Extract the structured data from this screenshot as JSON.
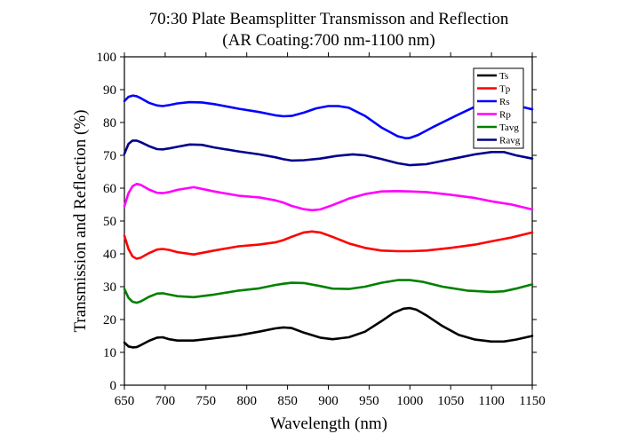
{
  "chart_data": {
    "type": "line",
    "title": "70:30 Plate Beamsplitter Transmisson and Reflection",
    "subtitle": "(AR Coating:700 nm-1100 nm)",
    "xlabel": "Wavelength (nm)",
    "ylabel": "Transmission and Reflection (%)",
    "xlim": [
      650,
      1150
    ],
    "ylim": [
      0,
      100
    ],
    "x_ticks": [
      650,
      700,
      750,
      800,
      850,
      900,
      950,
      1000,
      1050,
      1100,
      1150
    ],
    "y_ticks": [
      0,
      10,
      20,
      30,
      40,
      50,
      60,
      70,
      80,
      90,
      100
    ],
    "grid": false,
    "legend_position": "top-right",
    "series": [
      {
        "name": "Ts",
        "color": "#000000",
        "x": [
          650,
          655,
          660,
          665,
          670,
          680,
          690,
          697,
          705,
          715,
          735,
          760,
          790,
          815,
          835,
          845,
          855,
          870,
          890,
          905,
          925,
          945,
          965,
          980,
          992,
          1000,
          1008,
          1020,
          1040,
          1060,
          1080,
          1100,
          1115,
          1130,
          1150
        ],
        "values": [
          13.0,
          11.8,
          11.5,
          11.6,
          12.2,
          13.5,
          14.5,
          14.6,
          14.0,
          13.6,
          13.6,
          14.3,
          15.2,
          16.3,
          17.3,
          17.6,
          17.4,
          16.0,
          14.5,
          14.0,
          14.6,
          16.3,
          19.5,
          22.0,
          23.3,
          23.5,
          23.0,
          21.3,
          18.0,
          15.3,
          13.9,
          13.3,
          13.3,
          13.9,
          15.0
        ]
      },
      {
        "name": "Tp",
        "color": "#ff0000",
        "x": [
          650,
          655,
          660,
          665,
          670,
          680,
          690,
          697,
          705,
          715,
          735,
          760,
          790,
          815,
          835,
          845,
          855,
          870,
          880,
          890,
          905,
          925,
          945,
          965,
          985,
          1000,
          1020,
          1050,
          1080,
          1100,
          1125,
          1150
        ],
        "values": [
          45.5,
          41.5,
          39.2,
          38.5,
          38.8,
          40.2,
          41.3,
          41.5,
          41.2,
          40.5,
          39.8,
          41.0,
          42.3,
          42.8,
          43.5,
          44.2,
          45.2,
          46.5,
          46.8,
          46.5,
          45.2,
          43.2,
          41.8,
          41.0,
          40.8,
          40.8,
          41.0,
          41.8,
          42.8,
          43.8,
          45.0,
          46.5
        ]
      },
      {
        "name": "Rs",
        "color": "#0000ff",
        "x": [
          650,
          655,
          660,
          665,
          670,
          680,
          690,
          697,
          705,
          715,
          730,
          745,
          760,
          790,
          815,
          835,
          845,
          855,
          870,
          885,
          900,
          912,
          925,
          945,
          965,
          985,
          995,
          1000,
          1010,
          1030,
          1060,
          1080,
          1100,
          1115,
          1130,
          1140,
          1150
        ],
        "values": [
          86.5,
          87.8,
          88.2,
          88.0,
          87.4,
          86.0,
          85.2,
          85.0,
          85.3,
          85.8,
          86.2,
          86.1,
          85.6,
          84.2,
          83.2,
          82.2,
          81.9,
          82.0,
          83.0,
          84.3,
          85.0,
          85.0,
          84.5,
          82.0,
          78.5,
          75.8,
          75.2,
          75.3,
          76.2,
          78.8,
          82.5,
          84.8,
          86.0,
          86.1,
          85.2,
          84.6,
          84.0
        ]
      },
      {
        "name": "Rp",
        "color": "#ff00ff",
        "x": [
          650,
          655,
          660,
          665,
          670,
          680,
          690,
          697,
          705,
          715,
          735,
          760,
          790,
          815,
          835,
          845,
          855,
          870,
          880,
          890,
          905,
          925,
          945,
          965,
          985,
          1000,
          1020,
          1050,
          1080,
          1100,
          1125,
          1150
        ],
        "values": [
          54.5,
          58.5,
          60.6,
          61.3,
          61.0,
          59.6,
          58.6,
          58.5,
          58.8,
          59.5,
          60.3,
          59.0,
          57.7,
          57.2,
          56.3,
          55.6,
          54.6,
          53.6,
          53.3,
          53.5,
          54.8,
          56.8,
          58.2,
          59.0,
          59.1,
          59.0,
          58.8,
          58.0,
          57.0,
          56.0,
          55.0,
          53.5
        ]
      },
      {
        "name": "Tavg",
        "color": "#008000",
        "x": [
          650,
          655,
          660,
          665,
          670,
          680,
          690,
          697,
          705,
          715,
          735,
          760,
          790,
          815,
          835,
          845,
          855,
          870,
          890,
          905,
          925,
          945,
          965,
          985,
          1000,
          1015,
          1040,
          1070,
          1100,
          1115,
          1130,
          1150
        ],
        "values": [
          29.3,
          26.6,
          25.4,
          25.1,
          25.5,
          26.9,
          27.9,
          28.0,
          27.6,
          27.1,
          26.8,
          27.6,
          28.8,
          29.5,
          30.5,
          30.9,
          31.2,
          31.1,
          30.2,
          29.4,
          29.3,
          30.0,
          31.2,
          32.0,
          32.0,
          31.5,
          30.0,
          28.8,
          28.4,
          28.6,
          29.4,
          30.7
        ]
      },
      {
        "name": "Ravg",
        "color": "#00008b",
        "x": [
          650,
          655,
          660,
          665,
          670,
          680,
          690,
          697,
          705,
          715,
          730,
          745,
          760,
          790,
          815,
          835,
          845,
          855,
          870,
          890,
          910,
          930,
          945,
          965,
          985,
          1000,
          1020,
          1050,
          1080,
          1100,
          1115,
          1130,
          1150
        ],
        "values": [
          70.5,
          73.5,
          74.5,
          74.5,
          74.0,
          72.8,
          71.9,
          71.8,
          72.1,
          72.6,
          73.3,
          73.2,
          72.4,
          71.2,
          70.3,
          69.4,
          68.8,
          68.4,
          68.5,
          69.0,
          69.8,
          70.3,
          70.0,
          68.9,
          67.6,
          67.0,
          67.3,
          68.8,
          70.3,
          71.0,
          71.0,
          70.0,
          69.0
        ]
      }
    ]
  }
}
